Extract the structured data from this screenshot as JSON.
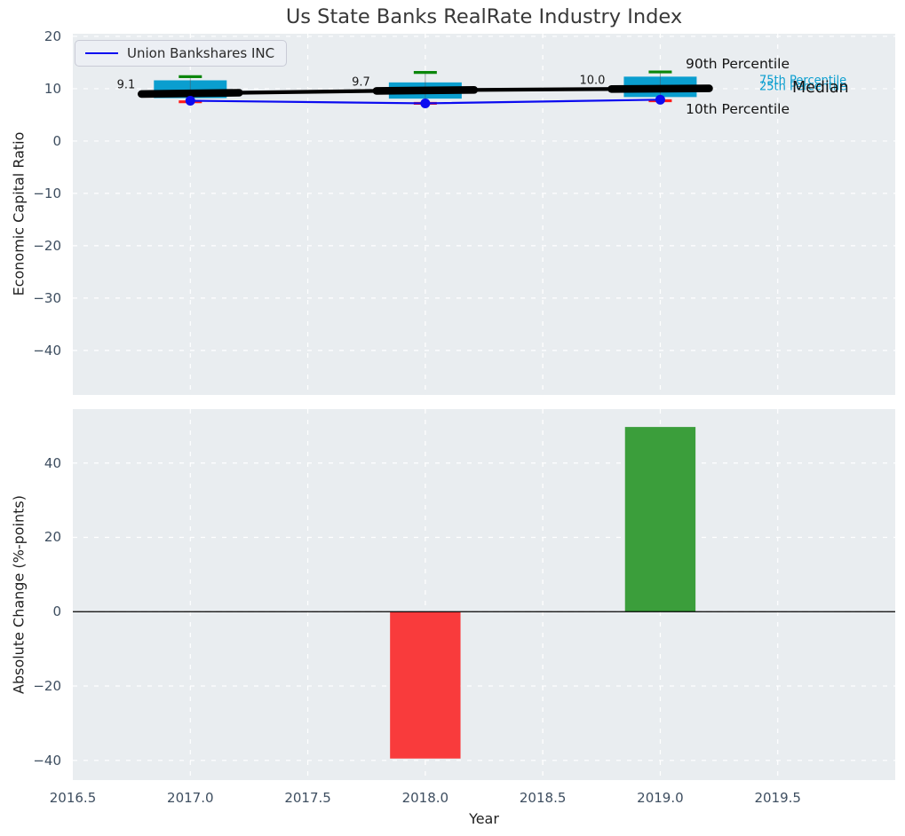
{
  "title": "Us State Banks RealRate Industry Index",
  "legend": {
    "label": "Union Bankshares INC"
  },
  "colors": {
    "plot_background": "#e9edf0",
    "grid": "#ffffff",
    "box_fill": "#0a9ecf",
    "median_line": "#000000",
    "company_line": "#0b0bf0",
    "p90_cap": "#0b860b",
    "p10_cap": "#ff1a1a",
    "bar_negative": "#f93b3c",
    "bar_positive": "#3b9e3b",
    "tick_text": "#3e4e60",
    "zero_line": "#000000"
  },
  "chart_data": [
    {
      "type": "line",
      "subtype": "percentile-band-boxes-with-company-line",
      "title": "Us State Banks RealRate Industry Index",
      "ylabel": "Economic Capital Ratio",
      "xlim": [
        2016.5,
        2020.0
      ],
      "ylim": [
        -48.5,
        20.5
      ],
      "grid": "white dashed, on",
      "legend_position": "upper left",
      "years": [
        2017,
        2018,
        2019
      ],
      "series": [
        {
          "name": "90th Percentile",
          "values": [
            12.3,
            13.1,
            13.2
          ]
        },
        {
          "name": "75th Percentile",
          "values": [
            11.6,
            11.2,
            12.3
          ]
        },
        {
          "name": "Median",
          "values": [
            9.1,
            9.7,
            10.0
          ]
        },
        {
          "name": "25th Percentile",
          "values": [
            8.2,
            8.1,
            8.4
          ]
        },
        {
          "name": "10th Percentile",
          "values": [
            7.5,
            7.2,
            7.7
          ]
        },
        {
          "name": "Union Bankshares INC",
          "values": [
            7.7,
            7.2,
            7.9
          ]
        }
      ],
      "median_annotations": [
        {
          "year": 2017,
          "text": "9.1"
        },
        {
          "year": 2018,
          "text": "9.7"
        },
        {
          "year": 2019,
          "text": "10.0"
        }
      ],
      "right_labels": [
        {
          "text": "90th Percentile",
          "style": "black-large"
        },
        {
          "text": "75th Percentile",
          "style": "cyan-small"
        },
        {
          "text": "25th Percentile",
          "style": "cyan-small"
        },
        {
          "text": "Median",
          "style": "black-xlarge"
        },
        {
          "text": "10th Percentile",
          "style": "black-large"
        }
      ],
      "yticks": [
        {
          "v": 20,
          "label": "20"
        },
        {
          "v": 10,
          "label": "10"
        },
        {
          "v": 0,
          "label": "0"
        },
        {
          "v": -10,
          "label": "−10"
        },
        {
          "v": -20,
          "label": "−20"
        },
        {
          "v": -30,
          "label": "−30"
        },
        {
          "v": -40,
          "label": "−40"
        }
      ],
      "xtick_grid_values": [
        2017,
        2017.5,
        2018,
        2018.5,
        2019,
        2019.5
      ]
    },
    {
      "type": "bar",
      "ylabel": "Absolute Change (%-points)",
      "xlabel": "Year",
      "xlim": [
        2016.5,
        2020.0
      ],
      "ylim": [
        -45.3,
        54.5
      ],
      "grid": "white dashed, on",
      "zero_line": true,
      "bar_width_years": 0.3,
      "categories": [
        2018,
        2019
      ],
      "values": [
        -39.5,
        49.7
      ],
      "bar_colors": [
        "#f93b3c",
        "#3b9e3b"
      ],
      "yticks": [
        {
          "v": 40,
          "label": "40"
        },
        {
          "v": 20,
          "label": "20"
        },
        {
          "v": 0,
          "label": "0"
        },
        {
          "v": -20,
          "label": "−20"
        },
        {
          "v": -40,
          "label": "−40"
        }
      ],
      "xticks": [
        {
          "v": 2016.5,
          "label": "2016.5"
        },
        {
          "v": 2017.0,
          "label": "2017.0"
        },
        {
          "v": 2017.5,
          "label": "2017.5"
        },
        {
          "v": 2018.0,
          "label": "2018.0"
        },
        {
          "v": 2018.5,
          "label": "2018.5"
        },
        {
          "v": 2019.0,
          "label": "2019.0"
        },
        {
          "v": 2019.5,
          "label": "2019.5"
        }
      ]
    }
  ]
}
